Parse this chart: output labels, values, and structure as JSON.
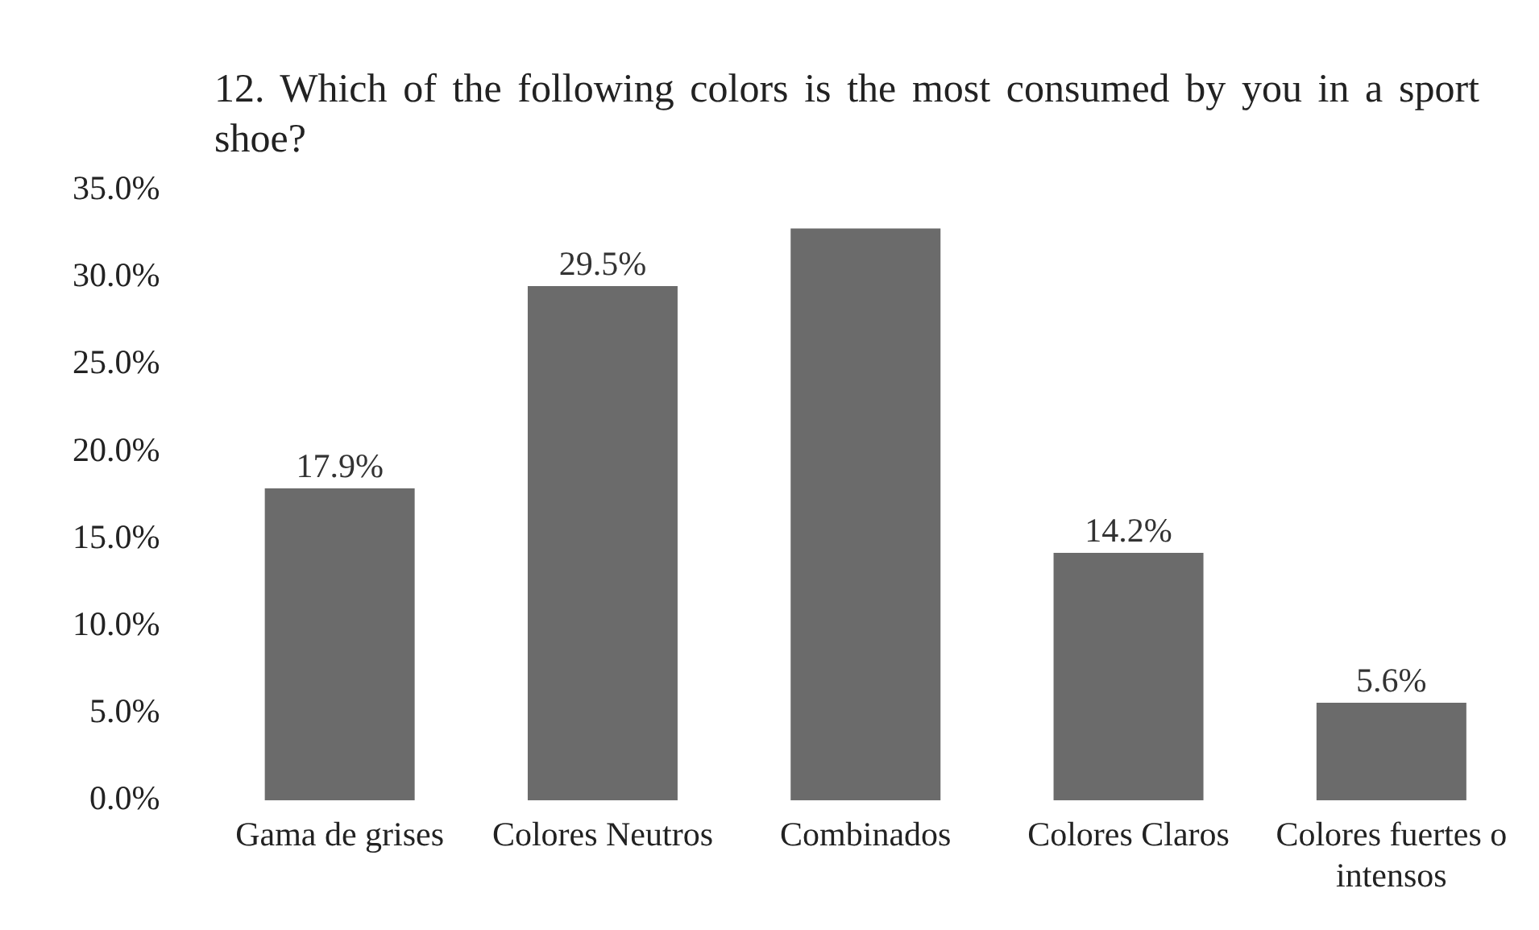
{
  "chart_data": {
    "type": "bar",
    "title": "12. Which of the following colors is the most consumed by you in a sport shoe?",
    "categories": [
      "Gama de grises",
      "Colores Neutros",
      "Combinados",
      "Colores Claros",
      "Colores fuertes o intensos"
    ],
    "values": [
      17.9,
      29.5,
      32.8,
      14.2,
      5.6
    ],
    "value_labels": [
      "17.9%",
      "29.5%",
      null,
      "14.2%",
      "5.6%"
    ],
    "color": "#6b6b6b",
    "ylim": [
      0,
      35
    ],
    "yticks": [
      {
        "value": 0,
        "label": "0.0%"
      },
      {
        "value": 5,
        "label": "5.0%"
      },
      {
        "value": 10,
        "label": "10.0%"
      },
      {
        "value": 15,
        "label": "15.0%"
      },
      {
        "value": 20,
        "label": "20.0%"
      },
      {
        "value": 25,
        "label": "25.0%"
      },
      {
        "value": 30,
        "label": "30.0%"
      },
      {
        "value": 35,
        "label": "35.0%"
      }
    ],
    "grid": false,
    "legend": false
  }
}
